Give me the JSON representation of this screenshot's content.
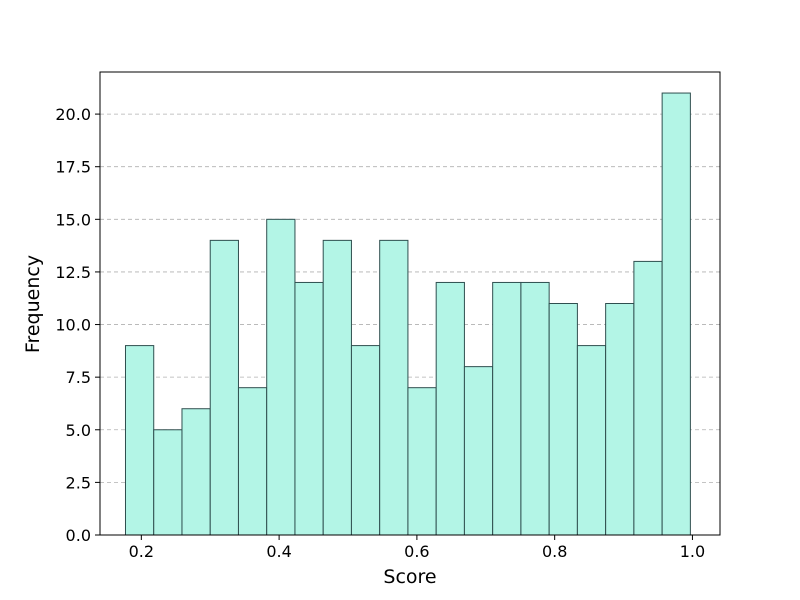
{
  "chart_data": {
    "type": "bar",
    "subtype": "histogram",
    "title": "",
    "xlabel": "Score",
    "ylabel": "Frequency",
    "xlim": [
      0.14,
      1.04
    ],
    "ylim": [
      0,
      22
    ],
    "bin_start": 0.177,
    "bin_width": 0.041,
    "bin_edges": [
      0.177,
      0.218,
      0.259,
      0.3,
      0.341,
      0.382,
      0.423,
      0.464,
      0.505,
      0.546,
      0.587,
      0.628,
      0.669,
      0.71,
      0.751,
      0.792,
      0.833,
      0.874,
      0.915,
      0.956,
      0.997
    ],
    "values": [
      9,
      5,
      6,
      14,
      7,
      15,
      12,
      14,
      9,
      14,
      7,
      12,
      8,
      12,
      12,
      11,
      9,
      11,
      13,
      21
    ],
    "xticks": [
      0.2,
      0.4,
      0.6,
      0.8,
      1.0
    ],
    "xtick_labels": [
      "0.2",
      "0.4",
      "0.6",
      "0.8",
      "1.0"
    ],
    "yticks": [
      0,
      2.5,
      5,
      7.5,
      10,
      12.5,
      15,
      17.5,
      20
    ],
    "ytick_labels": [
      "0.0",
      "2.5",
      "5.0",
      "7.5",
      "10.0",
      "12.5",
      "15.0",
      "17.5",
      "20.0"
    ],
    "grid": "y-dashed",
    "colors": {
      "bar_fill": "#b3f5e6",
      "bar_edge": "#2f4f4f",
      "grid": "#b0b0b0"
    }
  }
}
